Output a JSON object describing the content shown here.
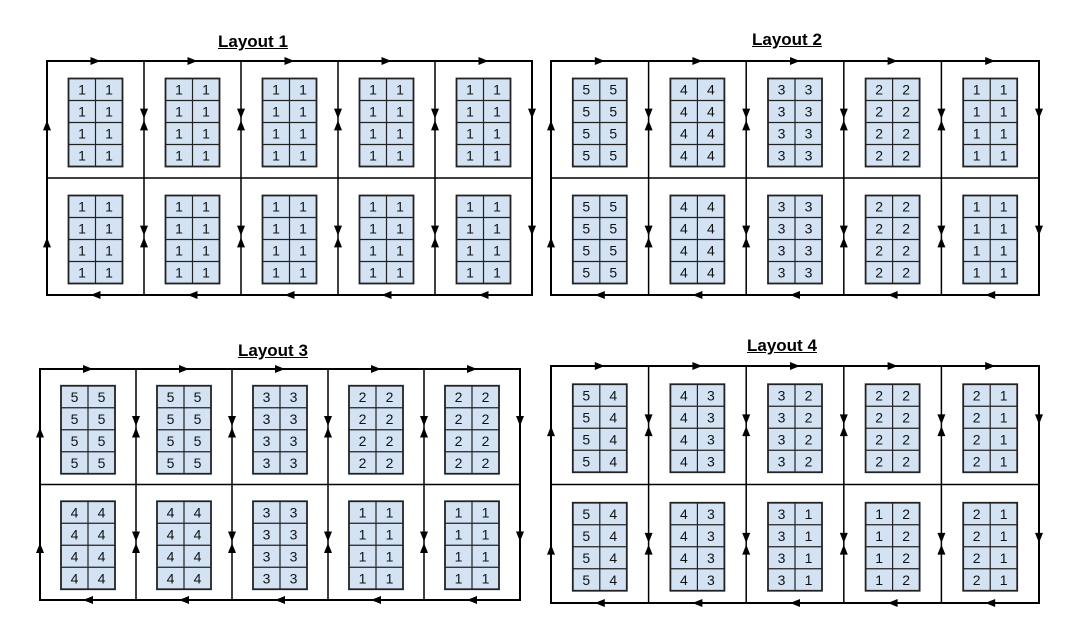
{
  "colors": {
    "line": "#000000",
    "tray_fill": "#d4e3f4",
    "tray_stroke": "#222222",
    "text": "#111111"
  },
  "layouts": [
    {
      "title": "Layout 1",
      "rows": [
        [
          [
            [
              "1",
              "1"
            ],
            [
              "1",
              "1"
            ],
            [
              "1",
              "1"
            ],
            [
              "1",
              "1"
            ]
          ],
          [
            [
              "1",
              "1"
            ],
            [
              "1",
              "1"
            ],
            [
              "1",
              "1"
            ],
            [
              "1",
              "1"
            ]
          ],
          [
            [
              "1",
              "1"
            ],
            [
              "1",
              "1"
            ],
            [
              "1",
              "1"
            ],
            [
              "1",
              "1"
            ]
          ],
          [
            [
              "1",
              "1"
            ],
            [
              "1",
              "1"
            ],
            [
              "1",
              "1"
            ],
            [
              "1",
              "1"
            ]
          ],
          [
            [
              "1",
              "1"
            ],
            [
              "1",
              "1"
            ],
            [
              "1",
              "1"
            ],
            [
              "1",
              "1"
            ]
          ]
        ],
        [
          [
            [
              "1",
              "1"
            ],
            [
              "1",
              "1"
            ],
            [
              "1",
              "1"
            ],
            [
              "1",
              "1"
            ]
          ],
          [
            [
              "1",
              "1"
            ],
            [
              "1",
              "1"
            ],
            [
              "1",
              "1"
            ],
            [
              "1",
              "1"
            ]
          ],
          [
            [
              "1",
              "1"
            ],
            [
              "1",
              "1"
            ],
            [
              "1",
              "1"
            ],
            [
              "1",
              "1"
            ]
          ],
          [
            [
              "1",
              "1"
            ],
            [
              "1",
              "1"
            ],
            [
              "1",
              "1"
            ],
            [
              "1",
              "1"
            ]
          ],
          [
            [
              "1",
              "1"
            ],
            [
              "1",
              "1"
            ],
            [
              "1",
              "1"
            ],
            [
              "1",
              "1"
            ]
          ]
        ]
      ]
    },
    {
      "title": "Layout 2",
      "rows": [
        [
          [
            [
              "5",
              "5"
            ],
            [
              "5",
              "5"
            ],
            [
              "5",
              "5"
            ],
            [
              "5",
              "5"
            ]
          ],
          [
            [
              "4",
              "4"
            ],
            [
              "4",
              "4"
            ],
            [
              "4",
              "4"
            ],
            [
              "4",
              "4"
            ]
          ],
          [
            [
              "3",
              "3"
            ],
            [
              "3",
              "3"
            ],
            [
              "3",
              "3"
            ],
            [
              "3",
              "3"
            ]
          ],
          [
            [
              "2",
              "2"
            ],
            [
              "2",
              "2"
            ],
            [
              "2",
              "2"
            ],
            [
              "2",
              "2"
            ]
          ],
          [
            [
              "1",
              "1"
            ],
            [
              "1",
              "1"
            ],
            [
              "1",
              "1"
            ],
            [
              "1",
              "1"
            ]
          ]
        ],
        [
          [
            [
              "5",
              "5"
            ],
            [
              "5",
              "5"
            ],
            [
              "5",
              "5"
            ],
            [
              "5",
              "5"
            ]
          ],
          [
            [
              "4",
              "4"
            ],
            [
              "4",
              "4"
            ],
            [
              "4",
              "4"
            ],
            [
              "4",
              "4"
            ]
          ],
          [
            [
              "3",
              "3"
            ],
            [
              "3",
              "3"
            ],
            [
              "3",
              "3"
            ],
            [
              "3",
              "3"
            ]
          ],
          [
            [
              "2",
              "2"
            ],
            [
              "2",
              "2"
            ],
            [
              "2",
              "2"
            ],
            [
              "2",
              "2"
            ]
          ],
          [
            [
              "1",
              "1"
            ],
            [
              "1",
              "1"
            ],
            [
              "1",
              "1"
            ],
            [
              "1",
              "1"
            ]
          ]
        ]
      ]
    },
    {
      "title": "Layout 3",
      "rows": [
        [
          [
            [
              "5",
              "5"
            ],
            [
              "5",
              "5"
            ],
            [
              "5",
              "5"
            ],
            [
              "5",
              "5"
            ]
          ],
          [
            [
              "5",
              "5"
            ],
            [
              "5",
              "5"
            ],
            [
              "5",
              "5"
            ],
            [
              "5",
              "5"
            ]
          ],
          [
            [
              "3",
              "3"
            ],
            [
              "3",
              "3"
            ],
            [
              "3",
              "3"
            ],
            [
              "3",
              "3"
            ]
          ],
          [
            [
              "2",
              "2"
            ],
            [
              "2",
              "2"
            ],
            [
              "2",
              "2"
            ],
            [
              "2",
              "2"
            ]
          ],
          [
            [
              "2",
              "2"
            ],
            [
              "2",
              "2"
            ],
            [
              "2",
              "2"
            ],
            [
              "2",
              "2"
            ]
          ]
        ],
        [
          [
            [
              "4",
              "4"
            ],
            [
              "4",
              "4"
            ],
            [
              "4",
              "4"
            ],
            [
              "4",
              "4"
            ]
          ],
          [
            [
              "4",
              "4"
            ],
            [
              "4",
              "4"
            ],
            [
              "4",
              "4"
            ],
            [
              "4",
              "4"
            ]
          ],
          [
            [
              "3",
              "3"
            ],
            [
              "3",
              "3"
            ],
            [
              "3",
              "3"
            ],
            [
              "3",
              "3"
            ]
          ],
          [
            [
              "1",
              "1"
            ],
            [
              "1",
              "1"
            ],
            [
              "1",
              "1"
            ],
            [
              "1",
              "1"
            ]
          ],
          [
            [
              "1",
              "1"
            ],
            [
              "1",
              "1"
            ],
            [
              "1",
              "1"
            ],
            [
              "1",
              "1"
            ]
          ]
        ]
      ]
    },
    {
      "title": "Layout 4",
      "rows": [
        [
          [
            [
              "5",
              "4"
            ],
            [
              "5",
              "4"
            ],
            [
              "5",
              "4"
            ],
            [
              "5",
              "4"
            ]
          ],
          [
            [
              "4",
              "3"
            ],
            [
              "4",
              "3"
            ],
            [
              "4",
              "3"
            ],
            [
              "4",
              "3"
            ]
          ],
          [
            [
              "3",
              "2"
            ],
            [
              "3",
              "2"
            ],
            [
              "3",
              "2"
            ],
            [
              "3",
              "2"
            ]
          ],
          [
            [
              "2",
              "2"
            ],
            [
              "2",
              "2"
            ],
            [
              "2",
              "2"
            ],
            [
              "2",
              "2"
            ]
          ],
          [
            [
              "2",
              "1"
            ],
            [
              "2",
              "1"
            ],
            [
              "2",
              "1"
            ],
            [
              "2",
              "1"
            ]
          ]
        ],
        [
          [
            [
              "5",
              "4"
            ],
            [
              "5",
              "4"
            ],
            [
              "5",
              "4"
            ],
            [
              "5",
              "4"
            ]
          ],
          [
            [
              "4",
              "3"
            ],
            [
              "4",
              "3"
            ],
            [
              "4",
              "3"
            ],
            [
              "4",
              "3"
            ]
          ],
          [
            [
              "3",
              "1"
            ],
            [
              "3",
              "1"
            ],
            [
              "3",
              "1"
            ],
            [
              "3",
              "1"
            ]
          ],
          [
            [
              "1",
              "2"
            ],
            [
              "1",
              "2"
            ],
            [
              "1",
              "2"
            ],
            [
              "1",
              "2"
            ]
          ],
          [
            [
              "2",
              "1"
            ],
            [
              "2",
              "1"
            ],
            [
              "2",
              "1"
            ],
            [
              "2",
              "1"
            ]
          ]
        ]
      ]
    }
  ]
}
